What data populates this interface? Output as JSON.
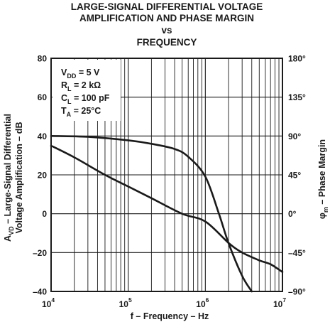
{
  "chart_data": {
    "type": "line",
    "title_lines": [
      "LARGE-SIGNAL DIFFERENTIAL VOLTAGE",
      "AMPLIFICATION AND PHASE MARGIN",
      "vs",
      "FREQUENCY"
    ],
    "xlabel": "f – Frequency – Hz",
    "ylabel_left": {
      "line1_prefix": "A",
      "line1_sub": "VD",
      "line1_rest": " – Large-Signal Differential",
      "line2": "Voltage Amplification – dB"
    },
    "ylabel_right": {
      "symbol": "φ",
      "sub": "m",
      "rest": " – Phase Margin"
    },
    "x_scale": "log",
    "xlim": [
      10000,
      10000000
    ],
    "x_ticks": [
      {
        "value": 10000,
        "base": "10",
        "exp": "4"
      },
      {
        "value": 100000,
        "base": "10",
        "exp": "5"
      },
      {
        "value": 1000000,
        "base": "10",
        "exp": "6"
      },
      {
        "value": 10000000,
        "base": "10",
        "exp": "7"
      }
    ],
    "ylim_left": [
      -40,
      80
    ],
    "y_ticks_left": [
      "80",
      "60",
      "40",
      "20",
      "0",
      "–20",
      "–40"
    ],
    "ylim_right": [
      -90,
      180
    ],
    "y_ticks_right": [
      "180°",
      "135°",
      "90°",
      "45°",
      "0°",
      "–45°",
      "–90°"
    ],
    "grid": true,
    "annotations": [
      {
        "base": "V",
        "sub": "DD",
        "rest": " = 5 V"
      },
      {
        "base": "R",
        "sub": "L",
        "rest": " = 2 kΩ"
      },
      {
        "base": "C",
        "sub": "L",
        "rest": " = 100 pF"
      },
      {
        "base": "T",
        "sub": "A",
        "rest": " = 25°C"
      }
    ],
    "series": [
      {
        "axis": "left",
        "x": [
          10000,
          20000,
          50000,
          100000,
          200000,
          500000,
          1000000,
          2000000,
          3000000,
          5000000,
          7000000,
          10000000
        ],
        "y": [
          35,
          29,
          20,
          14,
          8,
          0,
          -4,
          -15,
          -20,
          -24,
          -26,
          -30
        ]
      },
      {
        "axis": "right",
        "x": [
          10000,
          30000,
          100000,
          200000,
          400000,
          600000,
          1000000,
          1500000,
          2000000,
          3000000,
          4000000
        ],
        "y": [
          90,
          89,
          85,
          81,
          75,
          66,
          43,
          0,
          -34,
          -72,
          -90
        ]
      }
    ]
  }
}
